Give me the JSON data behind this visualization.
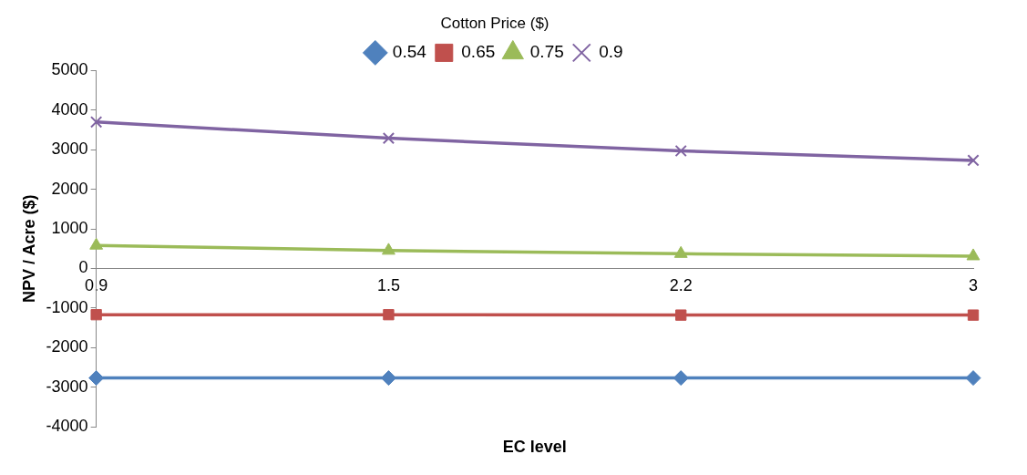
{
  "chart_data": {
    "type": "line",
    "xlabel": "EC level",
    "ylabel": "NPV / Acre ($)",
    "legend_title": "Cotton Price ($)",
    "legend": "top",
    "grid": false,
    "categories": [
      "0.9",
      "1.5",
      "2.2",
      "3"
    ],
    "ylim": [
      -4000,
      5000
    ],
    "yticks": [
      -4000,
      -3000,
      -2000,
      -1000,
      0,
      1000,
      2000,
      3000,
      4000,
      5000
    ],
    "series": [
      {
        "name": "0.54",
        "color": "#4f81bd",
        "marker": "diamond",
        "values": [
          -2770,
          -2770,
          -2770,
          -2770
        ]
      },
      {
        "name": "0.65",
        "color": "#c0504d",
        "marker": "square",
        "values": [
          -1170,
          -1170,
          -1180,
          -1180
        ]
      },
      {
        "name": "0.75",
        "color": "#9bbb59",
        "marker": "triangle",
        "values": [
          580,
          450,
          370,
          310
        ]
      },
      {
        "name": "0.9",
        "color": "#8064a2",
        "marker": "cross",
        "values": [
          3700,
          3290,
          2970,
          2730
        ]
      }
    ]
  }
}
